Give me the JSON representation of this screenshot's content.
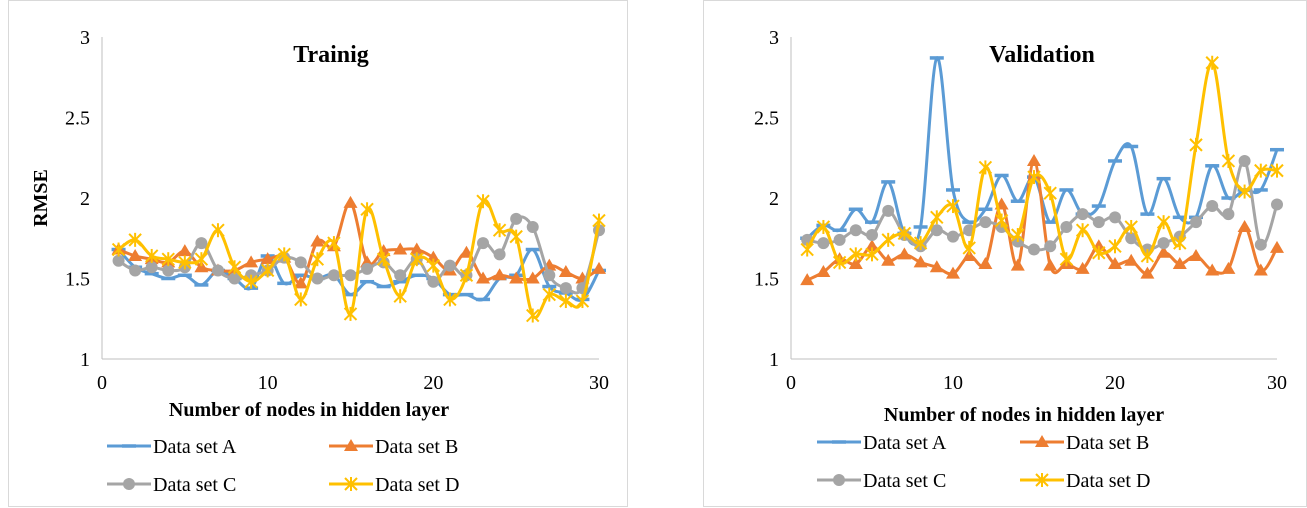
{
  "colors": {
    "A": "#5B9BD5",
    "B": "#ED7D31",
    "C": "#A5A5A5",
    "D": "#FFC000",
    "axis": "#bfbfbf"
  },
  "chart_data": [
    {
      "type": "line",
      "title": "Trainig",
      "xlabel": "Number of nodes in hidden layer",
      "ylabel": "RMSE",
      "xlim": [
        0,
        30
      ],
      "ylim": [
        1,
        3
      ],
      "xticks": [
        "0",
        "10",
        "20",
        "30"
      ],
      "yticks": [
        "1",
        "1.5",
        "2",
        "2.5",
        "3"
      ],
      "grid": false,
      "legend": "bottom",
      "x": [
        1,
        2,
        3,
        4,
        5,
        6,
        7,
        8,
        9,
        10,
        11,
        12,
        13,
        14,
        15,
        16,
        17,
        18,
        19,
        20,
        21,
        22,
        23,
        24,
        25,
        26,
        27,
        28,
        29,
        30
      ],
      "series": [
        {
          "name": "Data set A",
          "marker": "dash",
          "color": "#5B9BD5",
          "values": [
            1.68,
            1.57,
            1.53,
            1.5,
            1.52,
            1.46,
            1.55,
            1.5,
            1.44,
            1.64,
            1.47,
            1.52,
            1.5,
            1.52,
            1.4,
            1.48,
            1.45,
            1.48,
            1.52,
            1.5,
            1.4,
            1.4,
            1.37,
            1.5,
            1.52,
            1.68,
            1.45,
            1.41,
            1.37,
            1.55
          ]
        },
        {
          "name": "Data set B",
          "marker": "triangle",
          "color": "#ED7D31",
          "values": [
            1.68,
            1.64,
            1.62,
            1.6,
            1.67,
            1.57,
            1.55,
            1.55,
            1.6,
            1.62,
            1.63,
            1.47,
            1.73,
            1.7,
            1.97,
            1.6,
            1.67,
            1.68,
            1.68,
            1.63,
            1.55,
            1.66,
            1.5,
            1.52,
            1.5,
            1.5,
            1.58,
            1.54,
            1.5,
            1.56
          ]
        },
        {
          "name": "Data set C",
          "marker": "circle",
          "color": "#A5A5A5",
          "values": [
            1.61,
            1.55,
            1.57,
            1.55,
            1.57,
            1.72,
            1.55,
            1.5,
            1.52,
            1.55,
            1.63,
            1.6,
            1.5,
            1.52,
            1.52,
            1.56,
            1.6,
            1.52,
            1.62,
            1.48,
            1.58,
            1.52,
            1.72,
            1.65,
            1.87,
            1.82,
            1.52,
            1.44,
            1.44,
            1.8
          ]
        },
        {
          "name": "Data set D",
          "marker": "star",
          "color": "#FFC000",
          "values": [
            1.68,
            1.74,
            1.64,
            1.62,
            1.6,
            1.62,
            1.8,
            1.57,
            1.48,
            1.55,
            1.65,
            1.37,
            1.62,
            1.72,
            1.28,
            1.93,
            1.62,
            1.39,
            1.62,
            1.58,
            1.37,
            1.52,
            1.98,
            1.8,
            1.76,
            1.27,
            1.4,
            1.36,
            1.36,
            1.86
          ]
        }
      ]
    },
    {
      "type": "line",
      "title": "Validation",
      "xlabel": "Number of nodes in hidden layer",
      "ylabel": "",
      "xlim": [
        0,
        30
      ],
      "ylim": [
        1,
        3
      ],
      "xticks": [
        "0",
        "10",
        "20",
        "30"
      ],
      "yticks": [
        "1",
        "1.5",
        "2",
        "2.5",
        "3"
      ],
      "grid": false,
      "legend": "bottom",
      "x": [
        1,
        2,
        3,
        4,
        5,
        6,
        7,
        8,
        9,
        10,
        11,
        12,
        13,
        14,
        15,
        16,
        17,
        18,
        19,
        20,
        21,
        22,
        23,
        24,
        25,
        26,
        27,
        28,
        29,
        30
      ],
      "series": [
        {
          "name": "Data set A",
          "marker": "dash",
          "color": "#5B9BD5",
          "values": [
            1.75,
            1.83,
            1.8,
            1.93,
            1.85,
            2.1,
            1.78,
            1.82,
            2.87,
            2.05,
            1.85,
            1.93,
            2.14,
            1.98,
            2.13,
            1.85,
            2.05,
            1.9,
            1.95,
            2.23,
            2.32,
            1.9,
            2.12,
            1.88,
            1.88,
            2.2,
            2.0,
            2.05,
            2.05,
            2.3
          ]
        },
        {
          "name": "Data set B",
          "marker": "triangle",
          "color": "#ED7D31",
          "values": [
            1.49,
            1.54,
            1.62,
            1.59,
            1.7,
            1.61,
            1.65,
            1.6,
            1.57,
            1.53,
            1.64,
            1.59,
            1.96,
            1.58,
            2.23,
            1.58,
            1.59,
            1.56,
            1.7,
            1.59,
            1.61,
            1.53,
            1.66,
            1.59,
            1.64,
            1.55,
            1.56,
            1.82,
            1.55,
            1.69
          ]
        },
        {
          "name": "Data set C",
          "marker": "circle",
          "color": "#A5A5A5",
          "values": [
            1.74,
            1.72,
            1.74,
            1.8,
            1.77,
            1.92,
            1.77,
            1.7,
            1.8,
            1.76,
            1.8,
            1.85,
            1.82,
            1.73,
            1.68,
            1.7,
            1.82,
            1.9,
            1.85,
            1.88,
            1.75,
            1.68,
            1.72,
            1.76,
            1.85,
            1.95,
            1.9,
            2.23,
            1.71,
            1.96
          ]
        },
        {
          "name": "Data set D",
          "marker": "star",
          "color": "#FFC000",
          "values": [
            1.68,
            1.82,
            1.6,
            1.65,
            1.65,
            1.74,
            1.78,
            1.72,
            1.88,
            1.95,
            1.69,
            2.19,
            1.86,
            1.77,
            2.13,
            2.03,
            1.62,
            1.8,
            1.66,
            1.7,
            1.82,
            1.64,
            1.85,
            1.72,
            2.33,
            2.84,
            2.23,
            2.04,
            2.17,
            2.17
          ]
        }
      ]
    }
  ]
}
